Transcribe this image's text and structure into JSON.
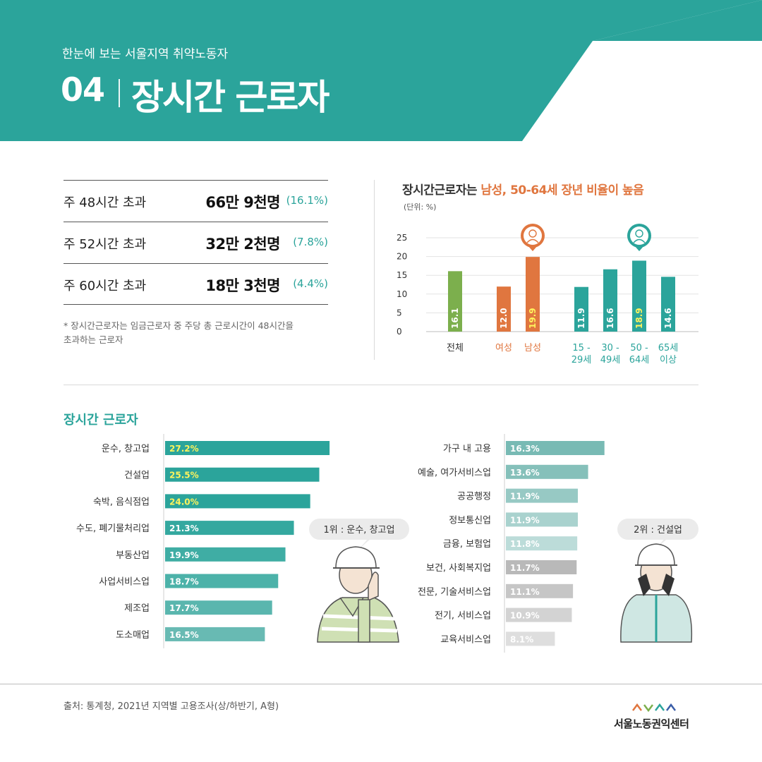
{
  "header": {
    "subtitle": "한눈에 보는 서울지역 취약노동자",
    "number": "04",
    "title": "장시간 근로자"
  },
  "colors": {
    "teal": "#2ba49b",
    "orange": "#e0763f",
    "green": "#7caf4d"
  },
  "stats": [
    {
      "label": "주 48시간 초과",
      "value": "66만 9천명",
      "pct": "(16.1%)"
    },
    {
      "label": "주 52시간 초과",
      "value": "32만 2천명",
      "pct": "(7.8%)"
    },
    {
      "label": "주 60시간 초과",
      "value": "18만 3천명",
      "pct": "(4.4%)"
    }
  ],
  "stat_note": "* 장시간근로자는 임금근로자 중 주당 총 근로시간이 48시간을\n  초과하는 근로자",
  "chart1": {
    "title_prefix": "장시간근로자는 ",
    "title_highlight": "남성, 50-64세 장년 비율이 높음",
    "unit": "(단위: %)"
  },
  "chart2": {
    "title": "장시간 근로자"
  },
  "source": "출처: 통계청, 2021년 지역별 고용조사(상/하반기, A형)",
  "logo_text": "서울노동권익센터",
  "chart_data": [
    {
      "type": "bar",
      "title": "장시간근로자는 남성, 50-64세 장년 비율이 높음",
      "unit": "(단위: %)",
      "ylim": [
        0,
        25
      ],
      "yticks": [
        0,
        5,
        10,
        15,
        20,
        25
      ],
      "grid": true,
      "categories": [
        {
          "label": [
            "전체"
          ],
          "value": 16.1,
          "color": "#7caf4d",
          "label_color": "#333333",
          "highlight": false,
          "icon": ""
        },
        {
          "label": [
            "여성"
          ],
          "value": 12.0,
          "color": "#e0763f",
          "label_color": "#e0763f",
          "highlight": false,
          "icon": ""
        },
        {
          "label": [
            "남성"
          ],
          "value": 19.9,
          "color": "#e0763f",
          "label_color": "#e0763f",
          "highlight": true,
          "icon": "male-worker-icon"
        },
        {
          "label": [
            "15 -",
            "29세"
          ],
          "value": 11.9,
          "color": "#2ba49b",
          "label_color": "#2ba49b",
          "highlight": false,
          "icon": ""
        },
        {
          "label": [
            "30 -",
            "49세"
          ],
          "value": 16.6,
          "color": "#2ba49b",
          "label_color": "#2ba49b",
          "highlight": false,
          "icon": ""
        },
        {
          "label": [
            "50 -",
            "64세"
          ],
          "value": 18.9,
          "color": "#2ba49b",
          "label_color": "#2ba49b",
          "highlight": true,
          "icon": "older-worker-icon"
        },
        {
          "label": [
            "65세",
            "이상"
          ],
          "value": 14.6,
          "color": "#2ba49b",
          "label_color": "#2ba49b",
          "highlight": false,
          "icon": ""
        }
      ]
    },
    {
      "type": "bar",
      "orientation": "horizontal",
      "title": "장시간 근로자",
      "xlim": [
        0,
        30
      ],
      "series": [
        {
          "categories": [
            "운수, 창고업",
            "건설업",
            "숙박, 음식점업",
            "수도, 폐기물처리업",
            "부동산업",
            "사업서비스업",
            "제조업",
            "도소매업"
          ],
          "values": [
            27.2,
            25.5,
            24.0,
            21.3,
            19.9,
            18.7,
            17.7,
            16.5
          ],
          "labels": [
            "27.2%",
            "25.5%",
            "24.0%",
            "21.3%",
            "19.9%",
            "18.7%",
            "17.7%",
            "16.5%"
          ],
          "colors": [
            "#2ba49b",
            "#2ba49b",
            "#2ba49b",
            "#34a89f",
            "#3fada4",
            "#4cb2a9",
            "#5ab6ae",
            "#68bab3"
          ],
          "label_colors": [
            "#fff35c",
            "#fff35c",
            "#fff35c",
            "#ffffff",
            "#ffffff",
            "#ffffff",
            "#ffffff",
            "#ffffff"
          ]
        },
        {
          "categories": [
            "가구 내 고용",
            "예술, 여가서비스업",
            "공공행정",
            "정보통신업",
            "금융, 보험업",
            "보건, 사회복지업",
            "전문, 기술서비스업",
            "전기, 서비스업",
            "교육서비스업"
          ],
          "values": [
            16.3,
            13.6,
            11.9,
            11.9,
            11.8,
            11.7,
            11.1,
            10.9,
            8.1
          ],
          "labels": [
            "16.3%",
            "13.6%",
            "11.9%",
            "11.9%",
            "11.8%",
            "11.7%",
            "11.1%",
            "10.9%",
            "8.1%"
          ],
          "colors": [
            "#78bab4",
            "#85c0ba",
            "#97c9c4",
            "#a9d2ce",
            "#bcdcd9",
            "#b9b9b9",
            "#c6c6c6",
            "#d3d3d3",
            "#dedede"
          ],
          "label_colors": [
            "#ffffff",
            "#ffffff",
            "#ffffff",
            "#ffffff",
            "#ffffff",
            "#ffffff",
            "#ffffff",
            "#ffffff",
            "#ffffff"
          ]
        }
      ],
      "callouts": [
        "1위 : 운수, 창고업",
        "2위 : 건설업"
      ]
    }
  ]
}
